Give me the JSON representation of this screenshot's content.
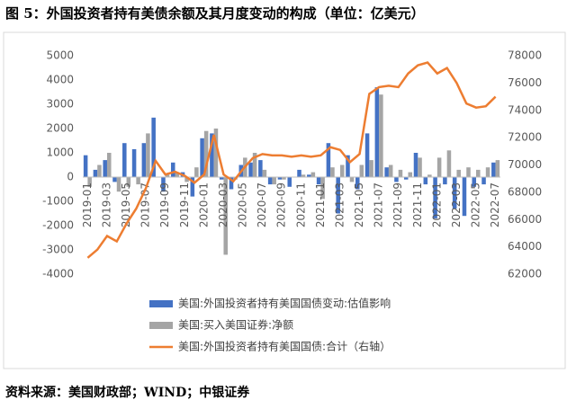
{
  "chart_data": {
    "type": "bar_line",
    "title": "图 5：外国投资者持有美债余额及其月度变动的构成（单位：亿美元）",
    "source": "资料来源：美国财政部；WIND；中银证券",
    "categories": [
      "2019-01",
      null,
      "2019-03",
      null,
      "2019-05",
      null,
      "2019-07",
      null,
      "2019-09",
      null,
      "2019-11",
      null,
      "2020-01",
      null,
      "2020-03",
      null,
      "2020-05",
      null,
      "2020-07",
      null,
      "2020-09",
      null,
      "2020-11",
      null,
      "2021-01",
      null,
      "2021-03",
      null,
      "2021-05",
      null,
      "2021-07",
      null,
      "2021-09",
      null,
      "2021-11",
      null,
      "2022-01",
      null,
      "2022-03",
      null,
      "2022-05",
      null,
      "2022-07"
    ],
    "series": [
      {
        "name": "美国:外国投资者持有美国国债变动:估值影响",
        "color": "#4472c4",
        "type": "bar",
        "values": [
          900,
          300,
          700,
          -200,
          1400,
          1150,
          1400,
          2450,
          -600,
          600,
          200,
          -800,
          1600,
          1800,
          -100,
          -500,
          500,
          600,
          700,
          -300,
          -100,
          -400,
          300,
          100,
          -300,
          1400,
          -1500,
          900,
          -500,
          1800,
          3700,
          400,
          -200,
          -100,
          1000,
          -300,
          -1700,
          -300,
          -1300,
          -1600,
          -400,
          -300,
          600
        ]
      },
      {
        "name": "美国:买入美国证券:净额",
        "color": "#a5a5a5",
        "type": "bar",
        "values": [
          -400,
          500,
          1000,
          -600,
          -400,
          -300,
          1800,
          0,
          100,
          200,
          -200,
          400,
          1900,
          2000,
          -3200,
          -100,
          800,
          1000,
          300,
          -300,
          -100,
          0,
          100,
          200,
          -900,
          400,
          500,
          -200,
          500,
          700,
          3400,
          500,
          300,
          200,
          800,
          100,
          800,
          1100,
          300,
          400,
          300,
          400,
          700
        ]
      },
      {
        "name": "美国:外国投资者持有美国国债:合计（右轴）",
        "color": "#ed7d31",
        "type": "line",
        "axis": "y2",
        "values": [
          63200,
          63800,
          64800,
          64400,
          65700,
          66800,
          68300,
          70300,
          69300,
          69500,
          69200,
          68700,
          69300,
          72200,
          69300,
          68800,
          69700,
          70500,
          70800,
          70700,
          70700,
          70600,
          70700,
          70600,
          70700,
          71300,
          71100,
          70200,
          70800,
          75200,
          75700,
          75800,
          75700,
          76700,
          77300,
          77500,
          76700,
          77100,
          76000,
          74500,
          74200,
          74300,
          75000
        ]
      }
    ],
    "ylim": [
      -4000,
      5000
    ],
    "yticks": [
      -4000,
      -3000,
      -2000,
      -1000,
      0,
      1000,
      2000,
      3000,
      4000,
      5000
    ],
    "y2lim": [
      62000,
      78000
    ],
    "y2ticks": [
      62000,
      64000,
      66000,
      68000,
      70000,
      72000,
      74000,
      76000,
      78000
    ],
    "legend": "bottom"
  }
}
